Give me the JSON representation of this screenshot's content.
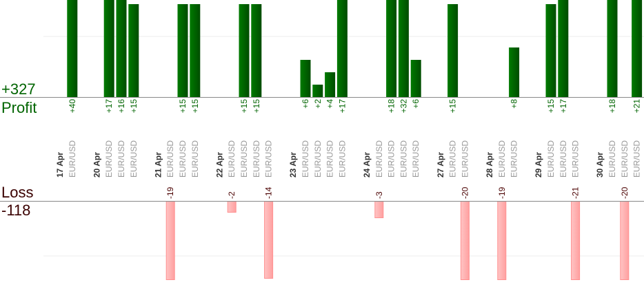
{
  "chart_data": {
    "type": "bar",
    "profit": {
      "label": "Profit",
      "total": "+327",
      "color": "#006400"
    },
    "loss": {
      "label": "Loss",
      "total": "-118",
      "color": "#ffb0b0",
      "text_color": "#4a0000"
    },
    "groups": [
      {
        "date": "17 Apr",
        "trades": [
          {
            "symbol": "EUR/USD",
            "value": 40
          }
        ]
      },
      {
        "date": "20 Apr",
        "trades": [
          {
            "symbol": "EUR/USD",
            "value": 17
          },
          {
            "symbol": "EUR/USD",
            "value": 16
          },
          {
            "symbol": "EUR/USD",
            "value": 15
          }
        ]
      },
      {
        "date": "21 Apr",
        "trades": [
          {
            "symbol": "EUR/USD",
            "value": -19
          },
          {
            "symbol": "EUR/USD",
            "value": 15
          },
          {
            "symbol": "EUR/USD",
            "value": 15
          }
        ]
      },
      {
        "date": "22 Apr",
        "trades": [
          {
            "symbol": "EUR/USD",
            "value": -2
          },
          {
            "symbol": "EUR/USD",
            "value": 15
          },
          {
            "symbol": "EUR/USD",
            "value": 15
          },
          {
            "symbol": "EUR/USD",
            "value": -14
          }
        ]
      },
      {
        "date": "23 Apr",
        "trades": [
          {
            "symbol": "EUR/USD",
            "value": 6
          },
          {
            "symbol": "EUR/USD",
            "value": 2
          },
          {
            "symbol": "EUR/USD",
            "value": 4
          },
          {
            "symbol": "EUR/USD",
            "value": 17
          }
        ]
      },
      {
        "date": "24 Apr",
        "trades": [
          {
            "symbol": "EUR/USD",
            "value": -3
          },
          {
            "symbol": "EUR/USD",
            "value": 18
          },
          {
            "symbol": "EUR/USD",
            "value": 32
          },
          {
            "symbol": "EUR/USD",
            "value": 6
          }
        ]
      },
      {
        "date": "27 Apr",
        "trades": [
          {
            "symbol": "EUR/USD",
            "value": 15
          },
          {
            "symbol": "EUR/USD",
            "value": -20
          }
        ]
      },
      {
        "date": "28 Apr",
        "trades": [
          {
            "symbol": "EUR/USD",
            "value": -19
          },
          {
            "symbol": "EUR/USD",
            "value": 8
          }
        ]
      },
      {
        "date": "29 Apr",
        "trades": [
          {
            "symbol": "EUR/USD",
            "value": 15
          },
          {
            "symbol": "EUR/USD",
            "value": 17
          },
          {
            "symbol": "EUR/USD",
            "value": -21
          }
        ]
      },
      {
        "date": "30 Apr",
        "trades": [
          {
            "symbol": "EUR/USD",
            "value": 18
          },
          {
            "symbol": "EUR/USD",
            "value": -20
          },
          {
            "symbol": "EUR/USD",
            "value": 21
          }
        ]
      }
    ],
    "grid": true
  }
}
